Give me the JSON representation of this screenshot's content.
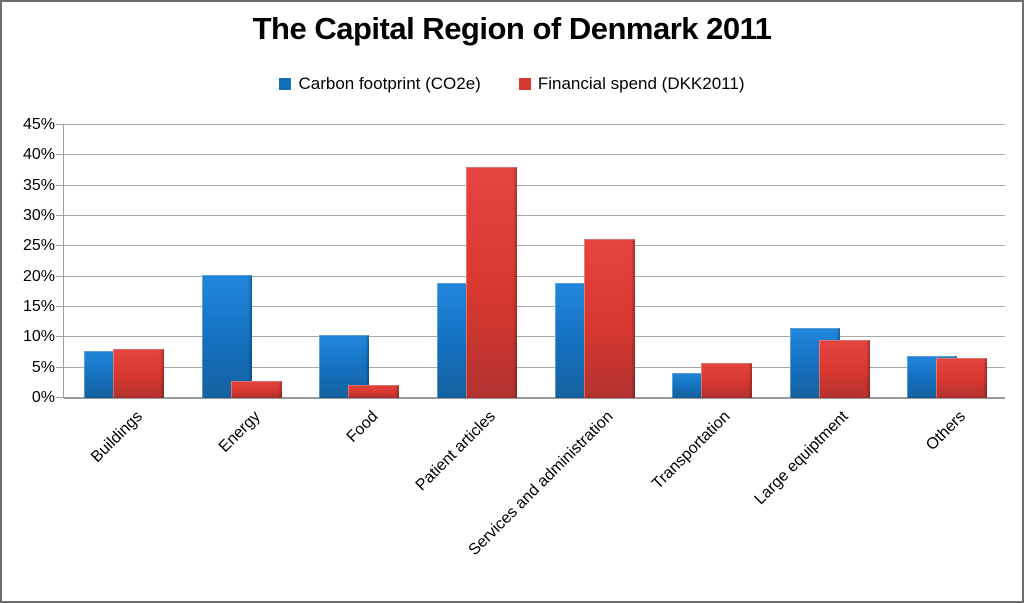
{
  "chart_data": {
    "type": "bar",
    "title": "The Capital Region of Denmark 2011",
    "categories": [
      "Buildings",
      "Energy",
      "Food",
      "Patient articles",
      "Services and administration",
      "Transportation",
      "Large equiptment",
      "Others"
    ],
    "series": [
      {
        "name": "Carbon footprint (CO2e)",
        "color": "#1470BE",
        "values": [
          7.8,
          20.2,
          10.4,
          18.9,
          18.9,
          4.2,
          11.6,
          6.9
        ]
      },
      {
        "name": "Financial spend (DKK2011)",
        "color": "#D8382F",
        "values": [
          8.0,
          2.8,
          2.1,
          38.1,
          26.2,
          5.8,
          9.5,
          6.6
        ]
      }
    ],
    "y_axis": {
      "min": 0,
      "max": 45,
      "step": 5,
      "unit": "%",
      "tick_labels": [
        "0%",
        "5%",
        "10%",
        "15%",
        "20%",
        "25%",
        "30%",
        "35%",
        "40%",
        "45%"
      ]
    },
    "x_label_rotation_deg": 45,
    "legend_position": "top-center",
    "grid": true,
    "bars_overlap": true,
    "colors": {
      "series_blue": "#1470BE",
      "series_red": "#D8382F",
      "gridline": "#A8A8A8",
      "axis": "#9A9A9A",
      "frame_border": "#6E6E6E",
      "background": "#FFFFFF",
      "text": "#000000"
    }
  }
}
